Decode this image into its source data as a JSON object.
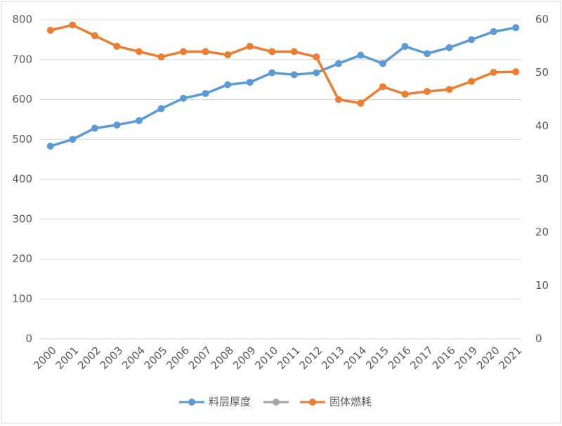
{
  "chart_data": {
    "type": "line",
    "categories": [
      "2000",
      "2001",
      "2002",
      "2003",
      "2004",
      "2005",
      "2006",
      "2007",
      "2008",
      "2009",
      "2010",
      "2011",
      "2012",
      "2013",
      "2014",
      "2015",
      "2016",
      "2017",
      "2016",
      "2019",
      "2020",
      "2021"
    ],
    "series": [
      {
        "name": "料层厚度",
        "color": "#5b9bd5",
        "axis": "y",
        "values": [
          483,
          500,
          528,
          536,
          547,
          577,
          603,
          615,
          637,
          643,
          667,
          662,
          667,
          690,
          711,
          690,
          733,
          715,
          730,
          750,
          770,
          780
        ]
      },
      {
        "name": "固体燃耗",
        "color": "#ed7d31",
        "axis": "y2",
        "values": [
          58,
          59,
          57,
          55,
          54,
          53,
          54,
          54,
          53.4,
          55,
          54,
          54,
          53,
          45,
          44.3,
          47.4,
          46,
          46.5,
          46.9,
          48.4,
          50.1,
          50.2
        ]
      }
    ],
    "ylim": [
      0,
      800
    ],
    "yticks": [
      0,
      100,
      200,
      300,
      400,
      500,
      600,
      700,
      800
    ],
    "y2lim": [
      0,
      60
    ],
    "y2ticks": [
      0,
      10,
      20,
      30,
      40,
      50,
      60
    ],
    "grid": true,
    "legend": "bottom"
  }
}
